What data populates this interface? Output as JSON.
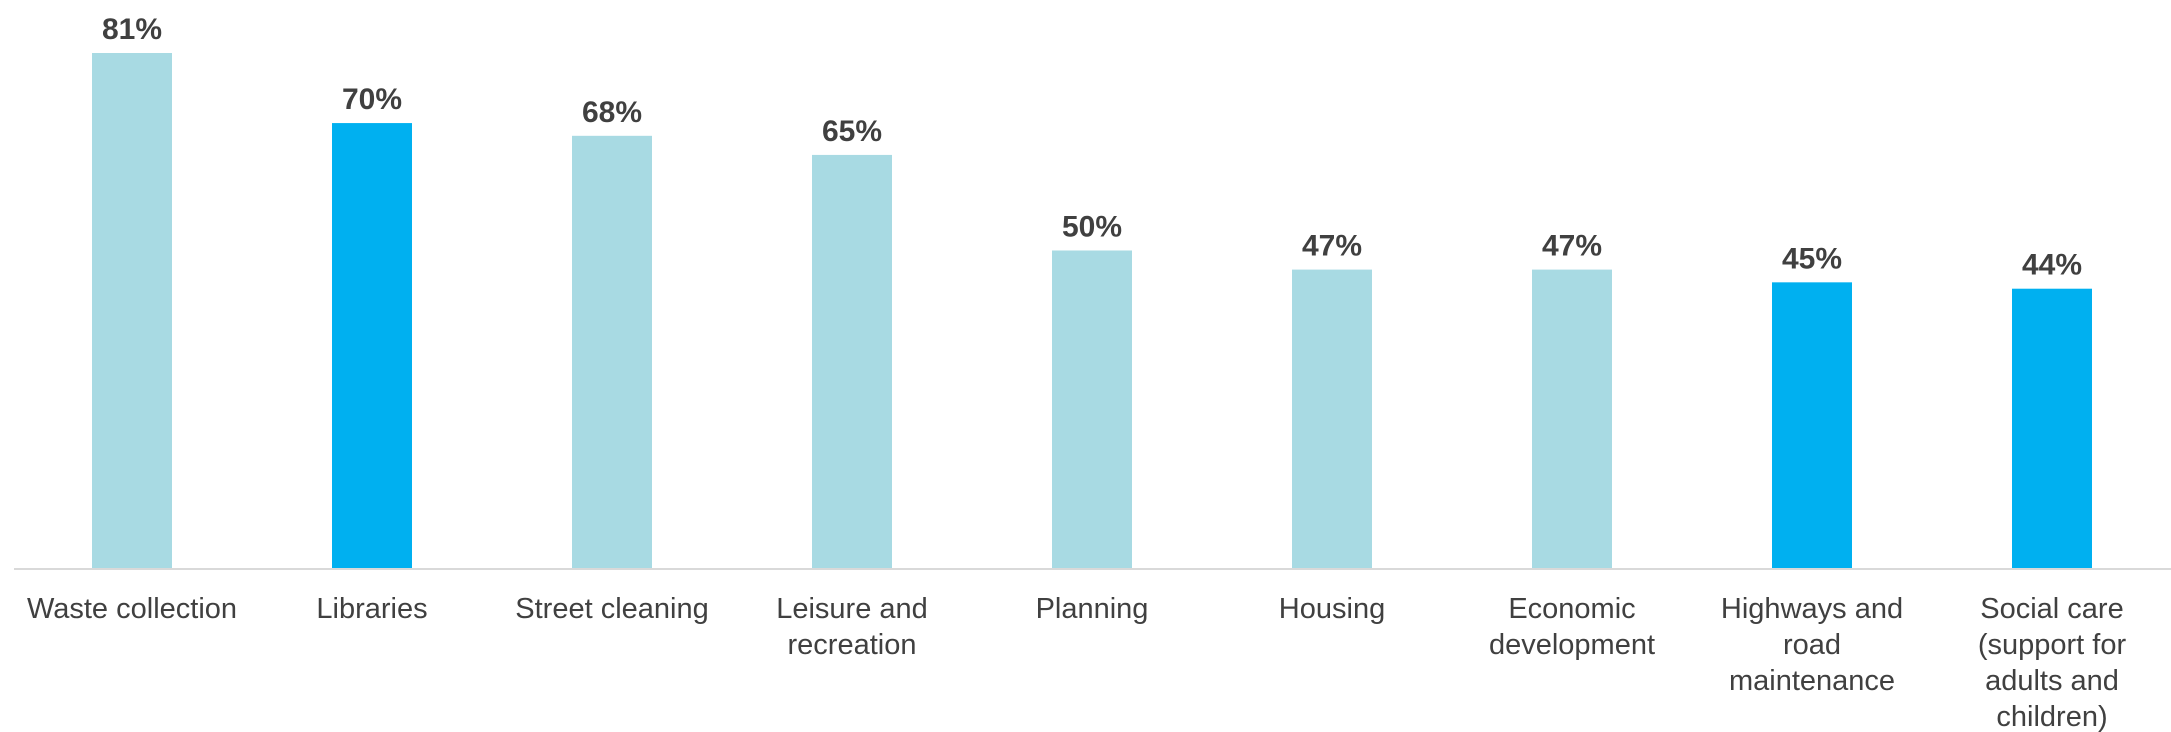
{
  "chart_data": {
    "type": "bar",
    "title": "",
    "xlabel": "",
    "ylabel": "",
    "ylim": [
      0,
      81
    ],
    "grid": false,
    "legend": "none",
    "categories": [
      [
        "Waste collection"
      ],
      [
        "Libraries"
      ],
      [
        "Street cleaning"
      ],
      [
        "Leisure and",
        "recreation"
      ],
      [
        "Planning"
      ],
      [
        "Housing"
      ],
      [
        "Economic",
        "development"
      ],
      [
        "Highways and",
        "road",
        "maintenance"
      ],
      [
        "Social care",
        "(support for",
        "adults and",
        "children)"
      ]
    ],
    "values": [
      81,
      70,
      68,
      65,
      50,
      47,
      47,
      45,
      44
    ],
    "value_labels": [
      "81%",
      "70%",
      "68%",
      "65%",
      "50%",
      "47%",
      "47%",
      "45%",
      "44%"
    ],
    "highlighted": [
      false,
      true,
      false,
      false,
      false,
      false,
      false,
      true,
      true
    ],
    "colors": {
      "bar": "#a8dae3",
      "bar_highlight": "#00b0f0",
      "axis": "#d9d9d9",
      "text": "#404040"
    }
  }
}
